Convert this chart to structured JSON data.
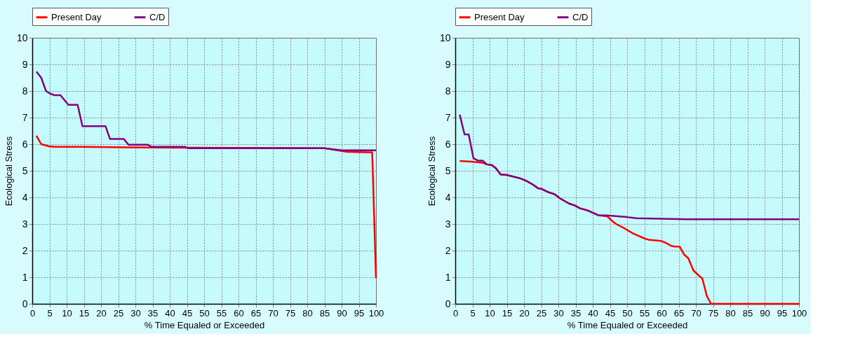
{
  "chart_data": [
    {
      "type": "line",
      "xlabel": "% Time Equaled or Exceeded",
      "ylabel": "Ecological Stress",
      "xlim": [
        0,
        100
      ],
      "xticks": [
        0,
        5,
        10,
        15,
        20,
        25,
        30,
        35,
        40,
        45,
        50,
        55,
        60,
        65,
        70,
        75,
        80,
        85,
        90,
        95,
        100
      ],
      "ylim": [
        0,
        10
      ],
      "yticks": [
        0,
        1,
        2,
        3,
        4,
        5,
        6,
        7,
        8,
        9,
        10
      ],
      "grid": true,
      "legend": "top",
      "line_style": "solid",
      "marker": "none",
      "series": [
        {
          "name": "Present Day",
          "color": "#ff0000",
          "x": [
            1.2,
            2.6,
            4.9,
            6.5,
            14,
            27,
            45,
            60,
            85,
            91.7,
            98.9,
            100
          ],
          "values": [
            6.32,
            6.0,
            5.92,
            5.9,
            5.9,
            5.88,
            5.87,
            5.86,
            5.85,
            5.71,
            5.69,
            0.96
          ]
        },
        {
          "name": "C/D",
          "color": "#800080",
          "x": [
            1.2,
            2.6,
            4.0,
            5.2,
            6.5,
            8.2,
            10.5,
            13.2,
            14.6,
            21.3,
            22.6,
            26.6,
            28.0,
            33.7,
            34.6,
            44.3,
            45.4,
            85,
            90,
            100
          ],
          "values": [
            8.73,
            8.5,
            8.0,
            7.9,
            7.84,
            7.84,
            7.48,
            7.48,
            6.68,
            6.68,
            6.2,
            6.2,
            5.98,
            5.98,
            5.9,
            5.9,
            5.85,
            5.85,
            5.77,
            5.77
          ]
        }
      ]
    },
    {
      "type": "line",
      "xlabel": "% Time Equaled or Exceeded",
      "ylabel": "Ecological Stress",
      "xlim": [
        0,
        100
      ],
      "xticks": [
        0,
        5,
        10,
        15,
        20,
        25,
        30,
        35,
        40,
        45,
        50,
        55,
        60,
        65,
        70,
        75,
        80,
        85,
        90,
        95,
        100
      ],
      "ylim": [
        0,
        10
      ],
      "yticks": [
        0,
        1,
        2,
        3,
        4,
        5,
        6,
        7,
        8,
        9,
        10
      ],
      "grid": true,
      "legend": "top",
      "line_style": "solid",
      "marker": "none",
      "series": [
        {
          "name": "Present Day",
          "color": "#ff0000",
          "x": [
            1.3,
            4.2,
            8.0,
            9.2,
            10.6,
            11.8,
            13.2,
            15.0,
            18.8,
            20.7,
            22.6,
            24.1,
            25.1,
            27.0,
            28.9,
            30.5,
            33.1,
            34.7,
            36.3,
            38.5,
            41.6,
            44.2,
            45.6,
            46.8,
            49.3,
            51.8,
            55,
            56.2,
            60,
            61.3,
            62.8,
            63.9,
            65.3,
            66.6,
            67.8,
            69.3,
            71.9,
            73.2,
            74.4,
            100
          ],
          "values": [
            5.37,
            5.35,
            5.3,
            5.24,
            5.22,
            5.1,
            4.86,
            4.84,
            4.72,
            4.62,
            4.48,
            4.34,
            4.32,
            4.2,
            4.12,
            3.96,
            3.77,
            3.7,
            3.59,
            3.51,
            3.33,
            3.29,
            3.12,
            3.0,
            2.83,
            2.64,
            2.46,
            2.41,
            2.36,
            2.29,
            2.18,
            2.15,
            2.15,
            1.85,
            1.71,
            1.25,
            0.94,
            0.29,
            0,
            0
          ]
        },
        {
          "name": "C/D",
          "color": "#800080",
          "x": [
            1.3,
            2.7,
            3.9,
            5.3,
            6.7,
            8.0,
            9.2,
            10.6,
            11.8,
            13.2,
            15.0,
            18.8,
            20.7,
            22.6,
            24.1,
            25.1,
            27.0,
            28.9,
            30.5,
            33.1,
            34.7,
            36.3,
            38.5,
            41.6,
            44.2,
            49.9,
            52.7,
            67.6,
            100
          ],
          "values": [
            7.11,
            6.37,
            6.37,
            5.47,
            5.38,
            5.38,
            5.24,
            5.22,
            5.1,
            4.86,
            4.84,
            4.72,
            4.62,
            4.48,
            4.34,
            4.32,
            4.2,
            4.12,
            3.96,
            3.77,
            3.7,
            3.59,
            3.51,
            3.33,
            3.32,
            3.26,
            3.22,
            3.18,
            3.18
          ]
        }
      ]
    }
  ]
}
